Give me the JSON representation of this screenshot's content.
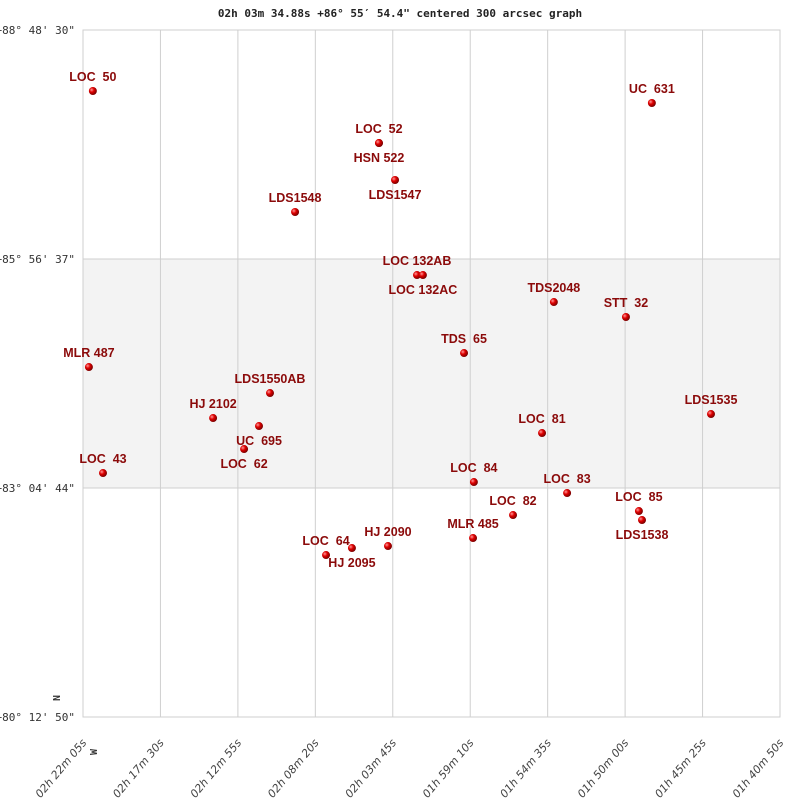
{
  "chart_data": {
    "type": "scatter",
    "title": "02h 03m 34.88s +86° 55′ 54.4\" centered 300 arcsec graph",
    "xlim": [
      "02h22m05s",
      "01h40m50s"
    ],
    "ylim": [
      "+80° 12' 50\"",
      "+88° 48' 30\""
    ],
    "x_ticks": [
      "02h 22m 05s",
      "02h 17m 30s",
      "02h 12m 55s",
      "02h 08m 20s",
      "02h 03m 45s",
      "01h 59m 10s",
      "01h 54m 35s",
      "01h 50m 00s",
      "01h 45m 25s",
      "01h 40m 50s"
    ],
    "y_ticks": [
      "+88° 48' 30\"",
      "+85° 56' 37\"",
      "+83° 04' 44\"",
      "+80° 12' 50\""
    ],
    "compass": {
      "north": "N",
      "west": "W"
    },
    "grid": true,
    "band_color": "#f3f3f3",
    "marker_color": "#e00000",
    "label_color": "#8b0a0a",
    "points": [
      {
        "name": "LOC  50",
        "ra": "02h21m30s",
        "dec": "+88°02'43\""
      },
      {
        "name": "UC  631",
        "ra": "01h48m25s",
        "dec": "+87°53'42\""
      },
      {
        "name": "LOC  52",
        "ra": "02h04m34s",
        "dec": "+87°23'40\""
      },
      {
        "name": "HSN 522",
        "ra": "02h04m34s",
        "dec": "+87°23'40\""
      },
      {
        "name": "LDS1547",
        "ra": "02h03m37s",
        "dec": "+86°55'54\""
      },
      {
        "name": "LDS1548",
        "ra": "02h09m32s",
        "dec": "+86°31'53\""
      },
      {
        "name": "LOC 132AB",
        "ra": "02h02m19s",
        "dec": "+85°44'35\""
      },
      {
        "name": "LOC 132AC",
        "ra": "02h01m58s",
        "dec": "+85°44'35\""
      },
      {
        "name": "TDS2048",
        "ra": "01h54m13s",
        "dec": "+85°24'19\""
      },
      {
        "name": "STT  32",
        "ra": "01h49m57s",
        "dec": "+85°13'04\""
      },
      {
        "name": "TDS  65",
        "ra": "01h59m32s",
        "dec": "+84°46'02\""
      },
      {
        "name": "MLR 487",
        "ra": "02h21m44s",
        "dec": "+84°35'32\""
      },
      {
        "name": "LDS1550AB",
        "ra": "02h11m01s",
        "dec": "+84°16'00\""
      },
      {
        "name": "LDS1535",
        "ra": "01h44m55s",
        "dec": "+84°00'15\""
      },
      {
        "name": "HJ 2102",
        "ra": "02h14m23s",
        "dec": "+83°57'14\""
      },
      {
        "name": "UC  695",
        "ra": "02h11m40s",
        "dec": "+83°51'14\""
      },
      {
        "name": "LOC  81",
        "ra": "01h54m55s",
        "dec": "+83°45'59\""
      },
      {
        "name": "LOC  62",
        "ra": "02h12m33s",
        "dec": "+83°33'58\""
      },
      {
        "name": "LOC  43",
        "ra": "02h20m54s",
        "dec": "+83°15'57\""
      },
      {
        "name": "LOC  84",
        "ra": "01h58m57s",
        "dec": "+83°09'12\""
      },
      {
        "name": "LOC  83",
        "ra": "01h53m26s",
        "dec": "+83°00'56\""
      },
      {
        "name": "LOC  85",
        "ra": "01h49m11s",
        "dec": "+82°47'26\""
      },
      {
        "name": "LDS1538",
        "ra": "01h49m00s",
        "dec": "+82°40'40\""
      },
      {
        "name": "LOC  82",
        "ra": "01h56m38s",
        "dec": "+82°44'26\""
      },
      {
        "name": "MLR 485",
        "ra": "01h59m00s",
        "dec": "+82°27'10\""
      },
      {
        "name": "HJ 2090",
        "ra": "02h04m02s",
        "dec": "+82°21'09\""
      },
      {
        "name": "HJ 2095",
        "ra": "02h06m10s",
        "dec": "+82°19'39\""
      },
      {
        "name": "LOC  64",
        "ra": "02h07m42s",
        "dec": "+82°14'24\""
      }
    ]
  }
}
